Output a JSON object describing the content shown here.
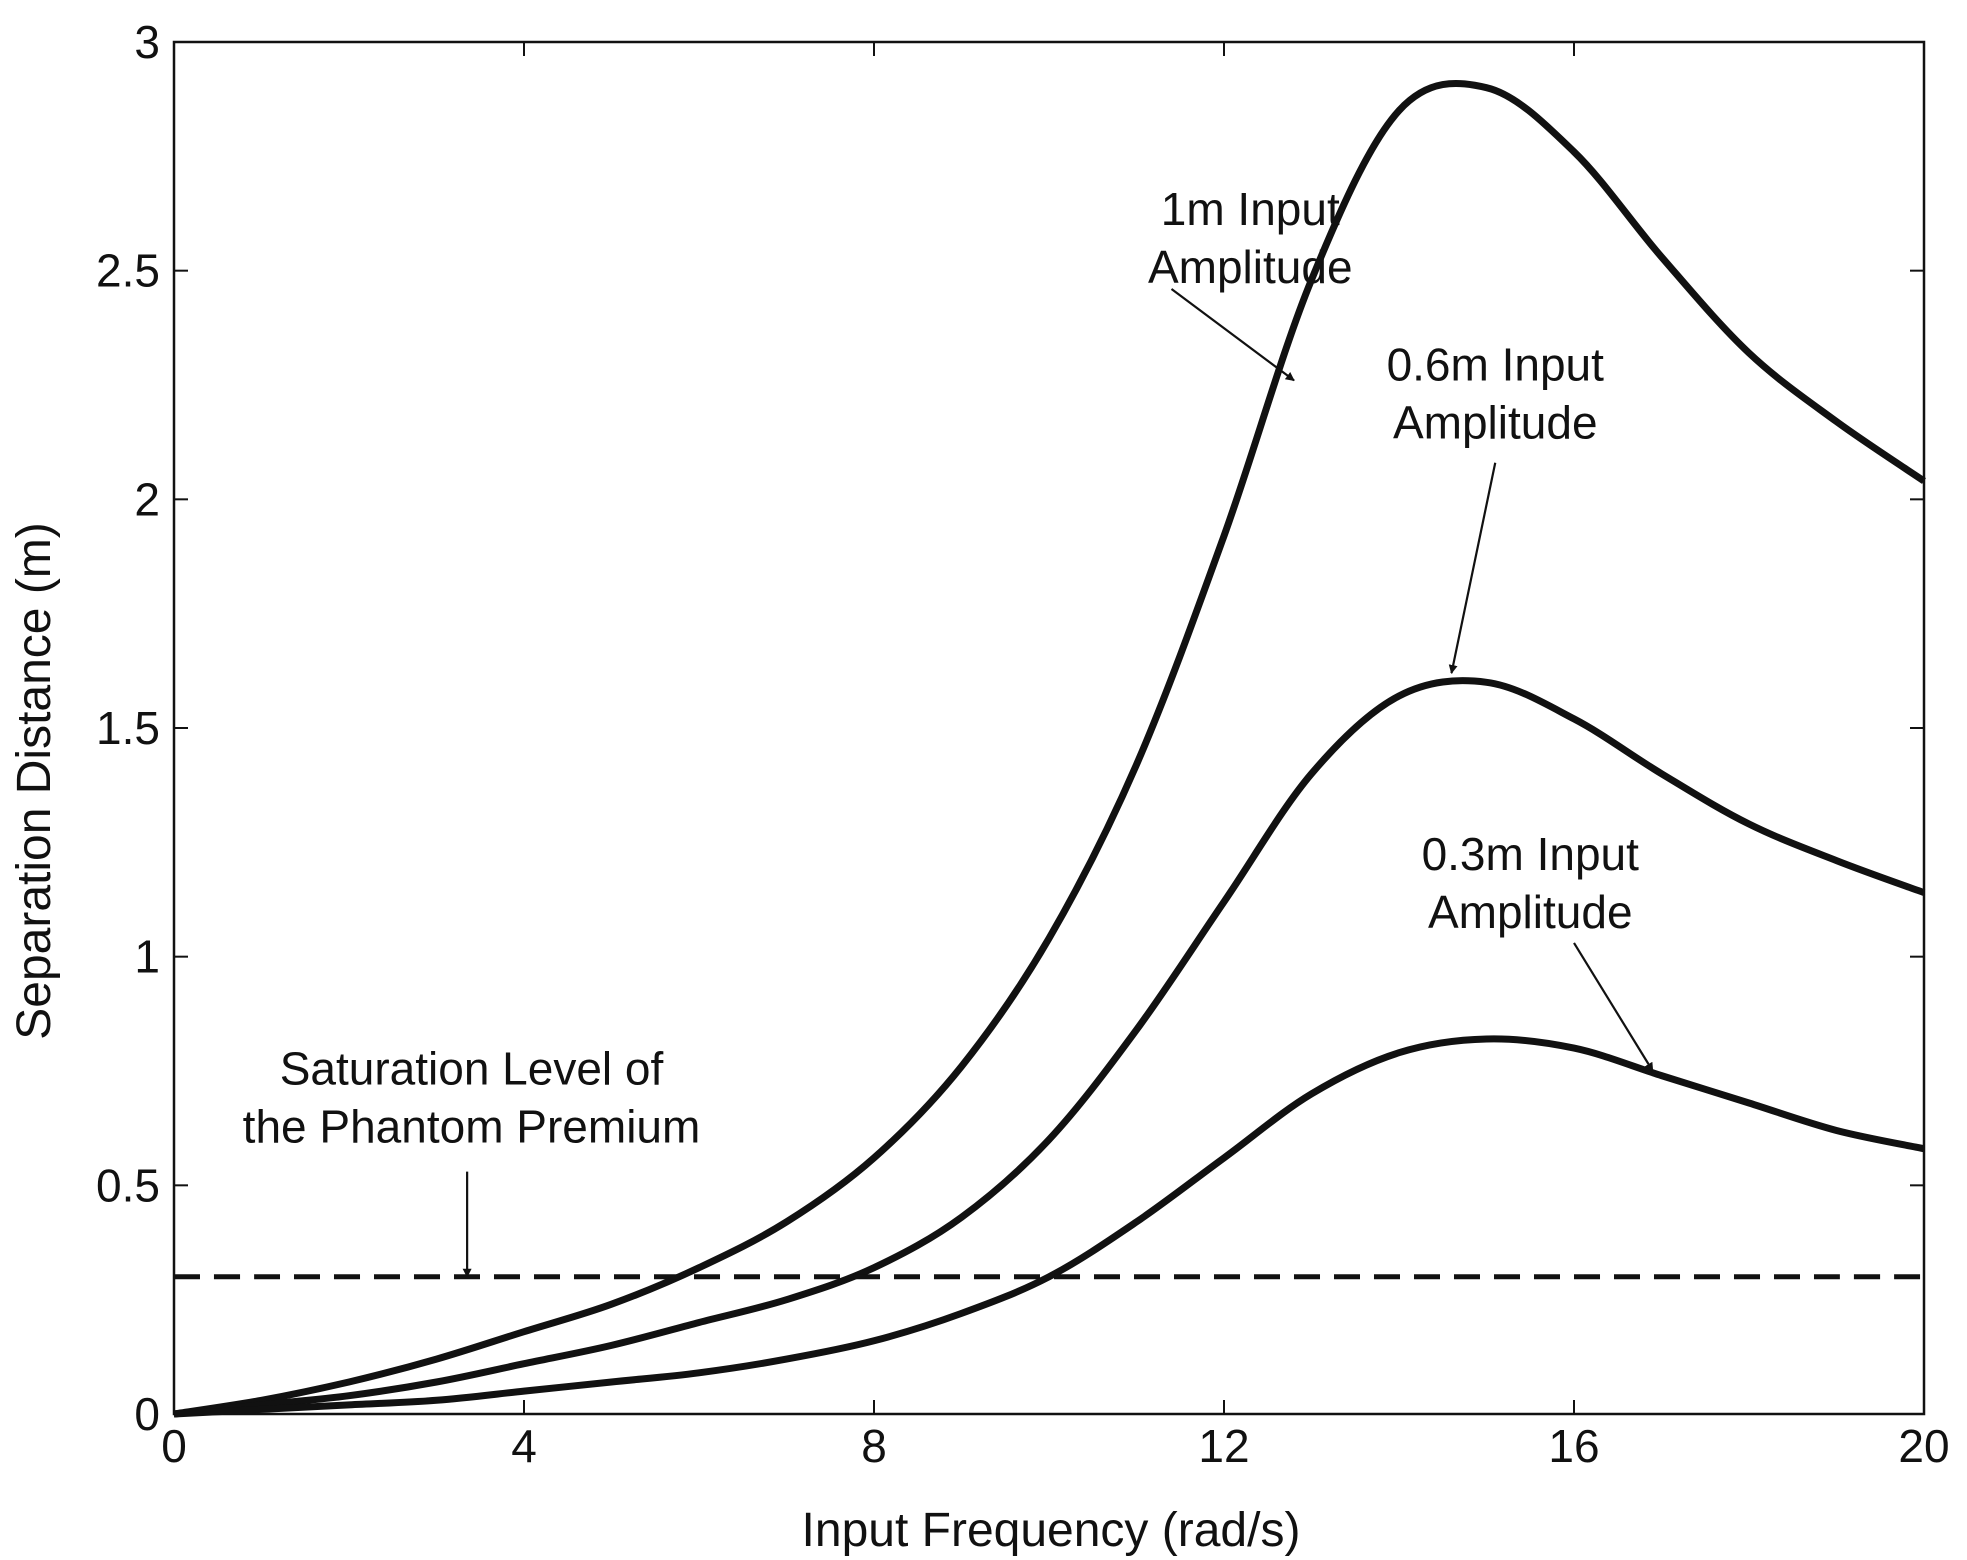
{
  "chart_data": {
    "type": "line",
    "title": "",
    "xlabel": "Input Frequency (rad/s)",
    "ylabel": "Separation Distance (m)",
    "xlim": [
      0,
      20
    ],
    "ylim": [
      0,
      3
    ],
    "x_ticks": [
      0,
      4,
      8,
      12,
      16,
      20
    ],
    "x_tick_labels": [
      "0",
      "4",
      "8",
      "12",
      "16",
      "20"
    ],
    "y_ticks": [
      0,
      0.5,
      1,
      1.5,
      2,
      2.5,
      3
    ],
    "y_tick_labels": [
      "0",
      "0.5",
      "1",
      "1.5",
      "2",
      "2.5",
      "3"
    ],
    "grid": false,
    "x": [
      0,
      1,
      2,
      3,
      4,
      5,
      6,
      7,
      8,
      9,
      10,
      11,
      12,
      13,
      14,
      15,
      16,
      17,
      18,
      19,
      20
    ],
    "series": [
      {
        "name": "1m Input Amplitude",
        "style": "solid",
        "values": [
          0,
          0.03,
          0.07,
          0.12,
          0.18,
          0.24,
          0.32,
          0.42,
          0.56,
          0.76,
          1.04,
          1.42,
          1.92,
          2.48,
          2.85,
          2.9,
          2.76,
          2.53,
          2.32,
          2.17,
          2.04
        ]
      },
      {
        "name": "0.6m Input Amplitude",
        "style": "solid",
        "values": [
          0,
          0.02,
          0.04,
          0.07,
          0.11,
          0.15,
          0.2,
          0.25,
          0.32,
          0.43,
          0.6,
          0.84,
          1.12,
          1.4,
          1.57,
          1.6,
          1.52,
          1.4,
          1.29,
          1.21,
          1.14
        ]
      },
      {
        "name": "0.3m Input Amplitude",
        "style": "solid",
        "values": [
          0,
          0.01,
          0.02,
          0.03,
          0.05,
          0.07,
          0.09,
          0.12,
          0.16,
          0.22,
          0.3,
          0.42,
          0.56,
          0.7,
          0.79,
          0.82,
          0.8,
          0.74,
          0.68,
          0.62,
          0.58
        ]
      },
      {
        "name": "Saturation Level of the Phantom Premium",
        "style": "dashed",
        "values": [
          0.3,
          0.3,
          0.3,
          0.3,
          0.3,
          0.3,
          0.3,
          0.3,
          0.3,
          0.3,
          0.3,
          0.3,
          0.3,
          0.3,
          0.3,
          0.3,
          0.3,
          0.3,
          0.3,
          0.3,
          0.3
        ]
      }
    ],
    "annotations": [
      {
        "lines": [
          "1m Input",
          "Amplitude"
        ],
        "text_x": 12.3,
        "text_y": 2.6,
        "arrow_from": [
          11.4,
          2.46
        ],
        "arrow_to": [
          12.8,
          2.26
        ]
      },
      {
        "lines": [
          "0.6m Input",
          "Amplitude"
        ],
        "text_x": 15.1,
        "text_y": 2.26,
        "arrow_from": [
          15.1,
          2.08
        ],
        "arrow_to": [
          14.6,
          1.62
        ]
      },
      {
        "lines": [
          "0.3m Input",
          "Amplitude"
        ],
        "text_x": 15.5,
        "text_y": 1.19,
        "arrow_from": [
          16.0,
          1.03
        ],
        "arrow_to": [
          16.9,
          0.75
        ]
      },
      {
        "lines": [
          "Saturation Level of",
          "the Phantom Premium"
        ],
        "text_x": 3.4,
        "text_y": 0.72,
        "arrow_from": [
          3.35,
          0.53
        ],
        "arrow_to": [
          3.35,
          0.3
        ]
      }
    ]
  }
}
